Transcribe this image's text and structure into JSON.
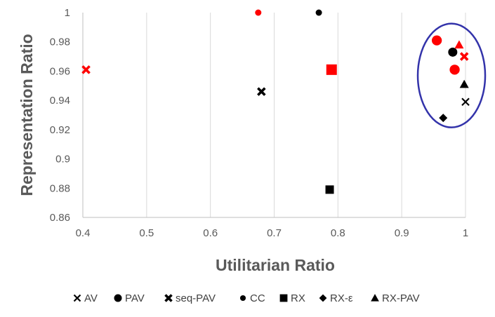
{
  "chart_data": {
    "type": "scatter",
    "title": "",
    "xlabel": "Utilitarian Ratio",
    "ylabel": "Representation Ratio",
    "xlim": [
      0.4,
      1.0
    ],
    "ylim": [
      0.86,
      1.0
    ],
    "x_ticks": [
      "0.4",
      "0.5",
      "0.6",
      "0.7",
      "0.8",
      "0.9",
      "1"
    ],
    "y_ticks": [
      "0.86",
      "0.88",
      "0.9",
      "0.92",
      "0.94",
      "0.96",
      "0.98",
      "1"
    ],
    "grid": "vertical",
    "legend_position": "bottom",
    "series": [
      {
        "name": "AV",
        "marker": "x",
        "color": "#000000",
        "points": [
          {
            "x": 1.0,
            "y": 0.939
          },
          {
            "x": 0.405,
            "y": 0.961
          }
        ]
      },
      {
        "name": "PAV",
        "marker": "circle",
        "color": "#000000",
        "points": [
          {
            "x": 0.98,
            "y": 0.973
          }
        ]
      },
      {
        "name": "seq-PAV",
        "marker": "thick-x",
        "color": "#000000",
        "points": [
          {
            "x": 0.68,
            "y": 0.946
          }
        ]
      },
      {
        "name": "CC",
        "marker": "small-circle",
        "color": "#000000",
        "points": [
          {
            "x": 0.77,
            "y": 1.0
          }
        ]
      },
      {
        "name": "RX",
        "marker": "square",
        "color": "#000000",
        "points": [
          {
            "x": 0.787,
            "y": 0.879
          }
        ]
      },
      {
        "name": "RX-ε",
        "marker": "diamond",
        "color": "#000000",
        "points": [
          {
            "x": 0.965,
            "y": 0.928
          }
        ]
      },
      {
        "name": "RX-PAV",
        "marker": "triangle",
        "color": "#000000",
        "points": [
          {
            "x": 0.998,
            "y": 0.951
          }
        ]
      }
    ],
    "highlighted_points": [
      {
        "marker": "circle",
        "color": "#ff0000",
        "x": 0.955,
        "y": 0.981
      },
      {
        "marker": "circle",
        "color": "#ff0000",
        "x": 0.983,
        "y": 0.961
      },
      {
        "marker": "triangle",
        "color": "#ff0000",
        "x": 0.99,
        "y": 0.978
      },
      {
        "marker": "thick-x",
        "color": "#ff0000",
        "x": 0.998,
        "y": 0.97
      },
      {
        "marker": "square",
        "color": "#ff0000",
        "x": 0.79,
        "y": 0.961
      },
      {
        "marker": "small-circle",
        "color": "#ff0000",
        "x": 0.675,
        "y": 1.0
      },
      {
        "marker": "thick-x",
        "color": "#ff0000",
        "x": 0.405,
        "y": 0.961
      }
    ],
    "annotation": {
      "shape": "ellipse",
      "color": "#3333aa",
      "center_x": 0.978,
      "center_y": 0.957
    }
  }
}
